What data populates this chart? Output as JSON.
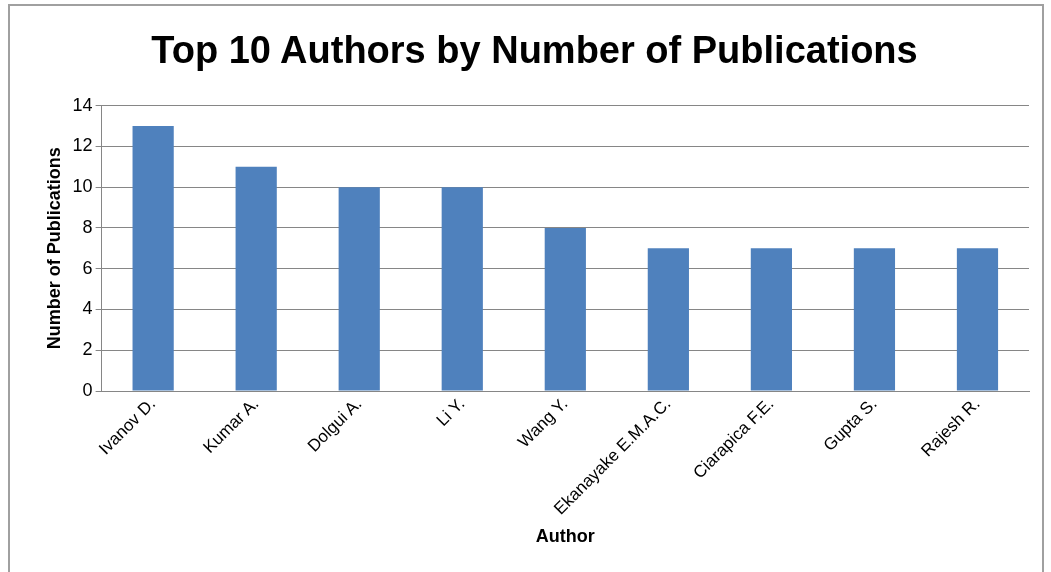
{
  "chart_data": {
    "type": "bar",
    "title": "Top 10 Authors by Number of Publications",
    "xlabel": "Author",
    "ylabel": "Number of Publications",
    "categories": [
      "Ivanov D.",
      "Kumar A.",
      "Dolgui A.",
      "Li Y.",
      "Wang Y.",
      "Ekanayake E.M.A.C.",
      "Ciarapica F.E.",
      "Gupta S.",
      "Rajesh R."
    ],
    "values": [
      13,
      11,
      10,
      10,
      8,
      7,
      7,
      7,
      7
    ],
    "color": "#4f81bd",
    "ylim": [
      0,
      14
    ],
    "yticks": [
      0,
      2,
      4,
      6,
      8,
      10,
      12,
      14
    ],
    "grid": "y"
  }
}
